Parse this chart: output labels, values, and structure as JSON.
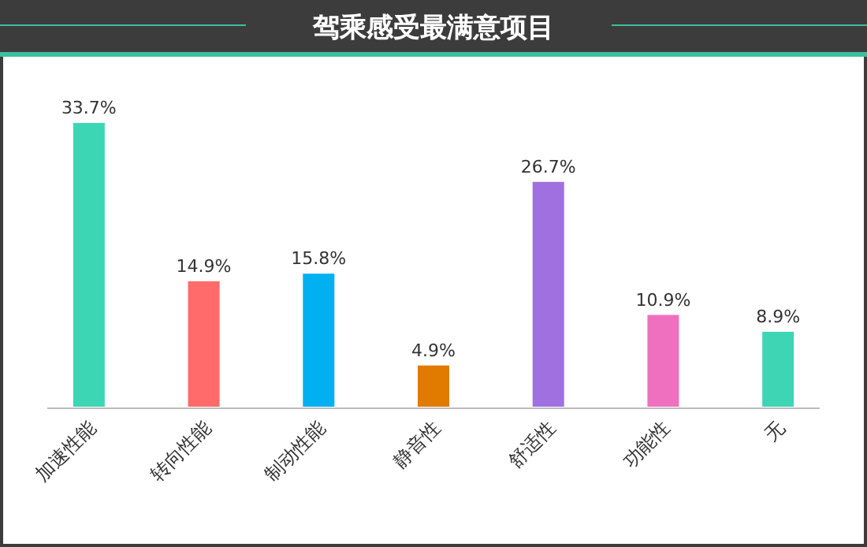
{
  "chart_data": {
    "type": "bar",
    "title": "驾乘感受最满意项目",
    "categories": [
      "加速性能",
      "转向性能",
      "制动性能",
      "静音性",
      "舒适性",
      "功能性",
      "无"
    ],
    "values": [
      33.7,
      14.9,
      15.8,
      4.9,
      26.7,
      10.9,
      8.9
    ],
    "colors": [
      "#3dd6b5",
      "#ff6b6b",
      "#00b0f0",
      "#e07b00",
      "#a070e0",
      "#f070c0",
      "#3dd6b5"
    ],
    "data_labels": true,
    "value_labels": [
      "33.7%",
      "14.9%",
      "15.8%",
      "4.9%",
      "26.7%",
      "10.9%",
      "8.9%"
    ]
  }
}
